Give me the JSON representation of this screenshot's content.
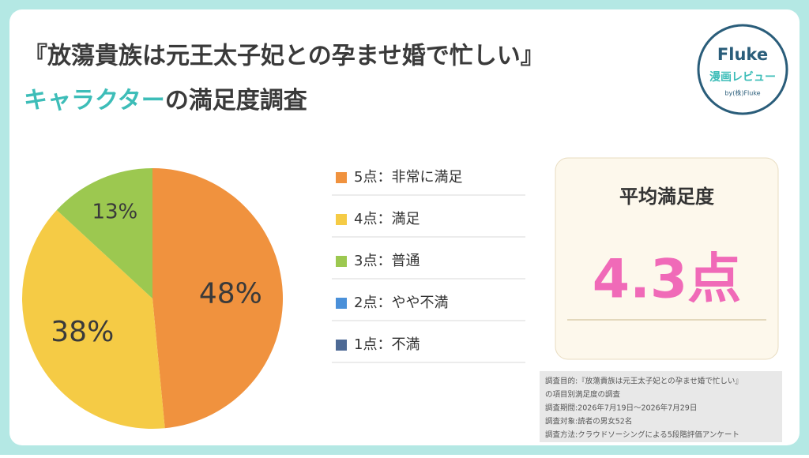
{
  "chart_data": {
    "type": "pie",
    "title": "『放蕩貴族は元王太子妃との孕ませ婚で忙しい』",
    "subtitle_highlight": "キャラクター",
    "subtitle": "の満足度調査",
    "categories": [
      "5点：非常に満足",
      "4点：満足",
      "3点：普通",
      "2点：やや不満",
      "1点：不満"
    ],
    "values": [
      48,
      38,
      13,
      0,
      0
    ],
    "value_labels": [
      "48%",
      "38%",
      "13%",
      null,
      null
    ],
    "colors": [
      "#f0923e",
      "#f5cb45",
      "#9cc850",
      "#4a90d9",
      "#4e6a95"
    ]
  },
  "summary": {
    "label": "平均満足度",
    "value": "4.3点"
  },
  "logo": {
    "name": "Fluke",
    "tagline": "漫画レビュー",
    "by": "by(株)Fluke"
  },
  "notes": [
    "調査目的:『放蕩貴族は元王太子妃との孕ませ婚で忙しい』",
    "の項目別満足度の調査",
    "調査期間:2026年7月19日～2026年7月29日",
    "調査対象:読者の男女52名",
    "調査方法:クラウドソーシングによる5段階評価アンケート"
  ]
}
